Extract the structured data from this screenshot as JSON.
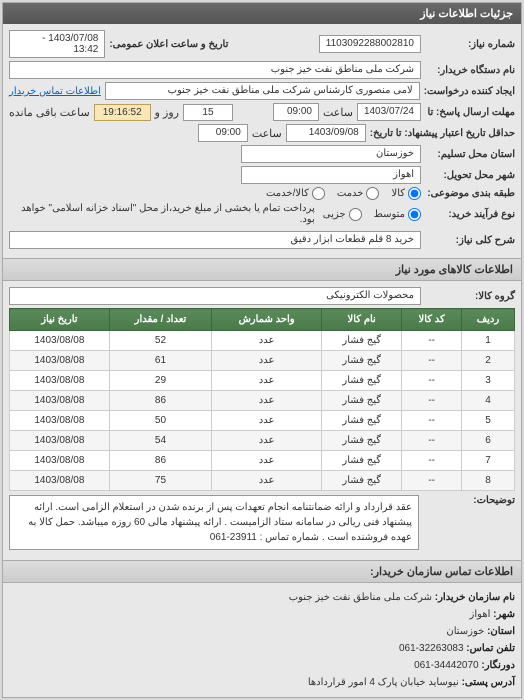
{
  "header": {
    "title": "جزئیات اطلاعات نیاز"
  },
  "form": {
    "req_number_label": "شماره نیاز:",
    "req_number": "1103092288002810",
    "announce_label": "تاریخ و ساعت اعلان عمومی:",
    "announce_value": "1403/07/08 - 13:42",
    "buyer_org_label": "نام دستگاه خریدار:",
    "buyer_org": "شرکت ملی مناطق نفت خیز جنوب",
    "requester_label": "ایجاد کننده درخواست:",
    "requester": "لامی منصوری کارشناس شرکت ملی مناطق نفت خیز جنوب",
    "contact_link": "اطلاعات تماس خریدار",
    "deadline_send_label": "مهلت ارسال پاسخ: تا",
    "deadline_date": "1403/07/24",
    "time_label": "ساعت",
    "deadline_time": "09:00",
    "days_label": "روز و",
    "days_value": "15",
    "countdown": "19:16:52",
    "remain_label": "ساعت باقی مانده",
    "validity_label": "حداقل تاریخ اعتبار پیشنهاد: تا تاریخ:",
    "validity_date": "1403/09/08",
    "validity_time": "09:00",
    "province_label": "استان محل تسلیم:",
    "province": "خوزستان",
    "city_label": "شهر محل تحویل:",
    "city": "اهواز",
    "budget_type_label": "طبقه بندی موضوعی:",
    "budget_radios": {
      "r1": "کالا",
      "r2": "خدمت",
      "r3": "کالا/خدمت"
    },
    "process_type_label": "نوع فرآیند خرید:",
    "process_radios": {
      "r1": "متوسط",
      "r2": "جزیی",
      "r3": "..."
    },
    "pay_note": "پرداخت تمام یا بخشی از مبلغ خرید،از محل \"اسناد خزانه اسلامی\" خواهد بود.",
    "req_title_label": "شرح کلی نیاز:",
    "req_title": "خرید 8 قلم قطعات ابزار دقیق"
  },
  "items_section": {
    "title": "اطلاعات کالاهای مورد نیاز",
    "group_label": "گروه کالا:",
    "group_value": "محصولات الکترونیکی"
  },
  "table": {
    "cols": [
      "ردیف",
      "کد کالا",
      "نام کالا",
      "واحد شمارش",
      "تعداد / مقدار",
      "تاریخ نیاز"
    ],
    "rows": [
      [
        "1",
        "--",
        "گیج فشار",
        "عدد",
        "52",
        "1403/08/08"
      ],
      [
        "2",
        "--",
        "گیج فشار",
        "عدد",
        "61",
        "1403/08/08"
      ],
      [
        "3",
        "--",
        "گیج فشار",
        "عدد",
        "29",
        "1403/08/08"
      ],
      [
        "4",
        "--",
        "گیج فشار",
        "عدد",
        "86",
        "1403/08/08"
      ],
      [
        "5",
        "--",
        "گیج فشار",
        "عدد",
        "50",
        "1403/08/08"
      ],
      [
        "6",
        "--",
        "گیج فشار",
        "عدد",
        "54",
        "1403/08/08"
      ],
      [
        "7",
        "--",
        "گیج فشار",
        "عدد",
        "86",
        "1403/08/08"
      ],
      [
        "8",
        "--",
        "گیج فشار",
        "عدد",
        "75",
        "1403/08/08"
      ]
    ]
  },
  "notes": {
    "label": "توضیحات:",
    "text": "عقد قرارداد و ارائه ضمانتنامه انجام تعهدات پس از برنده شدن در استعلام الزامی است. ارائه پیشنهاد فنی ریالی در سامانه ستاد الزامیست . ارائه پیشنهاد مالی 60 روزه میباشد. حمل کالا به عهده فروشنده است . شماره تماس : 23911-061"
  },
  "contact": {
    "header": "اطلاعات تماس سازمان خریدار:",
    "org_label": "نام سازمان خریدار:",
    "org": "شرکت ملی مناطق نفت خیز جنوب",
    "city_label": "شهر:",
    "city": "اهواز",
    "province_label": "استان:",
    "province": "خوزستان",
    "phone_label": "تلفن تماس:",
    "phone": "32263083-061",
    "fax_label": "دورنگار:",
    "fax": "34442070-061",
    "postal_label": "آدرس پستی:",
    "postal": "نیوساید خیابان پارک 4 امور قراردادها",
    "zip_label": "کد پستی:",
    "zip": "..."
  },
  "colors": {
    "header_bg": "#5a5a5a",
    "th_bg": "#4a7a4a",
    "countdown_bg": "#f9e7b8"
  }
}
